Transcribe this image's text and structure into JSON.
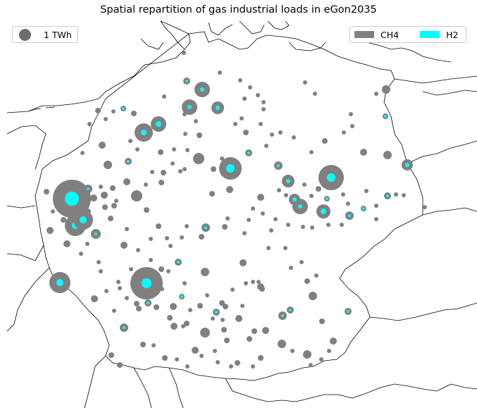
{
  "title": "Spatial repartition of gas industrial loads in eGon2035",
  "legend": {
    "size_label": "1 TWh",
    "carriers": [
      {
        "name": "CH4",
        "color": "#808080"
      },
      {
        "name": "H2",
        "color": "#00ffff"
      }
    ]
  },
  "colors": {
    "ch4": "#808080",
    "h2": "#00ffff",
    "outline": "#000000"
  }
}
